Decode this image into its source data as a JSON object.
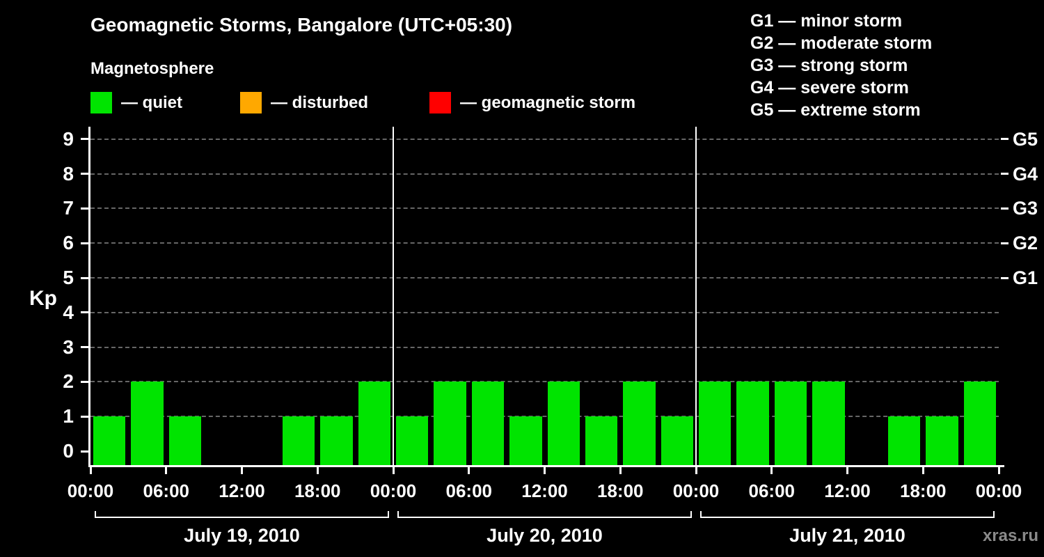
{
  "header": {
    "title": "Geomagnetic Storms, Bangalore (UTC+05:30)",
    "subtitle": "Magnetosphere"
  },
  "legend": {
    "items": [
      {
        "name": "quiet",
        "label": "— quiet",
        "color": "#00e400"
      },
      {
        "name": "disturbed",
        "label": "— disturbed",
        "color": "#ffa800"
      },
      {
        "name": "storm",
        "label": "— geomagnetic storm",
        "color": "#ff0000"
      }
    ]
  },
  "g_legend": {
    "items": [
      "G1 — minor storm",
      "G2 — moderate storm",
      "G3 — strong storm",
      "G4 — severe storm",
      "G5 — extreme storm"
    ]
  },
  "chart_data": {
    "type": "bar",
    "title": "Geomagnetic Storms, Bangalore (UTC+05:30)",
    "ylabel": "Kp",
    "ylim": [
      0,
      9.5
    ],
    "y_ticks": [
      0,
      1,
      2,
      3,
      4,
      5,
      6,
      7,
      8,
      9
    ],
    "x_tick_labels": [
      "00:00",
      "06:00",
      "12:00",
      "18:00",
      "00:00",
      "06:00",
      "12:00",
      "18:00",
      "00:00",
      "06:00",
      "12:00",
      "18:00",
      "00:00"
    ],
    "bar_interval_hours": 3,
    "days": [
      {
        "date": "July 19, 2010",
        "kp": [
          1,
          2,
          1,
          0,
          0,
          1,
          1,
          2
        ]
      },
      {
        "date": "July 20, 2010",
        "kp": [
          1,
          2,
          2,
          1,
          2,
          1,
          2,
          1
        ]
      },
      {
        "date": "July 21, 2010",
        "kp": [
          2,
          2,
          2,
          2,
          0,
          1,
          1,
          2
        ]
      }
    ],
    "colors": {
      "quiet": "#00e400",
      "disturbed": "#ffa800",
      "storm": "#ff0000",
      "axis": "#ffffff",
      "grid": "#666666"
    },
    "right_axis": [
      {
        "label": "G1",
        "kp": 5
      },
      {
        "label": "G2",
        "kp": 6
      },
      {
        "label": "G3",
        "kp": 7
      },
      {
        "label": "G4",
        "kp": 8
      },
      {
        "label": "G5",
        "kp": 9
      }
    ],
    "grid": "dashed",
    "legend_position": "top-left"
  },
  "footer": {
    "watermark": "xras.ru"
  }
}
